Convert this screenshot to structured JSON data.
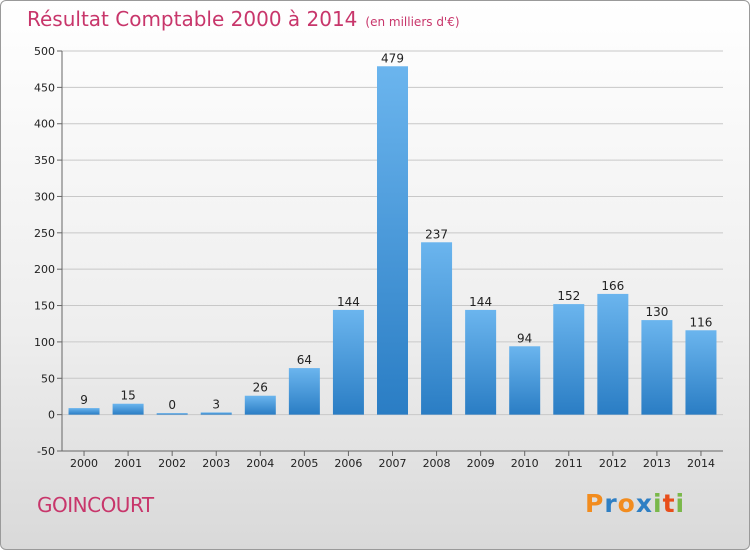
{
  "title": "Résultat Comptable 2000 à 2014",
  "subtitle": "(en milliers d'€)",
  "place": "GOINCOURT",
  "logo": {
    "letters": [
      "P",
      "r",
      "o",
      "x",
      "i",
      "t",
      "i"
    ],
    "colors": [
      "#f28c1e",
      "#2e7fc4",
      "#f28c1e",
      "#2e7fc4",
      "#7ab84a",
      "#e84e1b",
      "#7ab84a"
    ]
  },
  "colors": {
    "bar_light": "#6bb5ee",
    "bar_dark": "#2a7dc4",
    "title": "#c8366b"
  },
  "chart_data": {
    "type": "bar",
    "categories": [
      "2000",
      "2001",
      "2002",
      "2003",
      "2004",
      "2005",
      "2006",
      "2007",
      "2008",
      "2009",
      "2010",
      "2011",
      "2012",
      "2013",
      "2014"
    ],
    "values": [
      9,
      15,
      0,
      3,
      26,
      64,
      144,
      479,
      237,
      144,
      94,
      152,
      166,
      130,
      116
    ],
    "ylim": [
      -50,
      500
    ],
    "yticks": [
      -50,
      0,
      50,
      100,
      150,
      200,
      250,
      300,
      350,
      400,
      450,
      500
    ],
    "grid": true,
    "legend": "none"
  }
}
